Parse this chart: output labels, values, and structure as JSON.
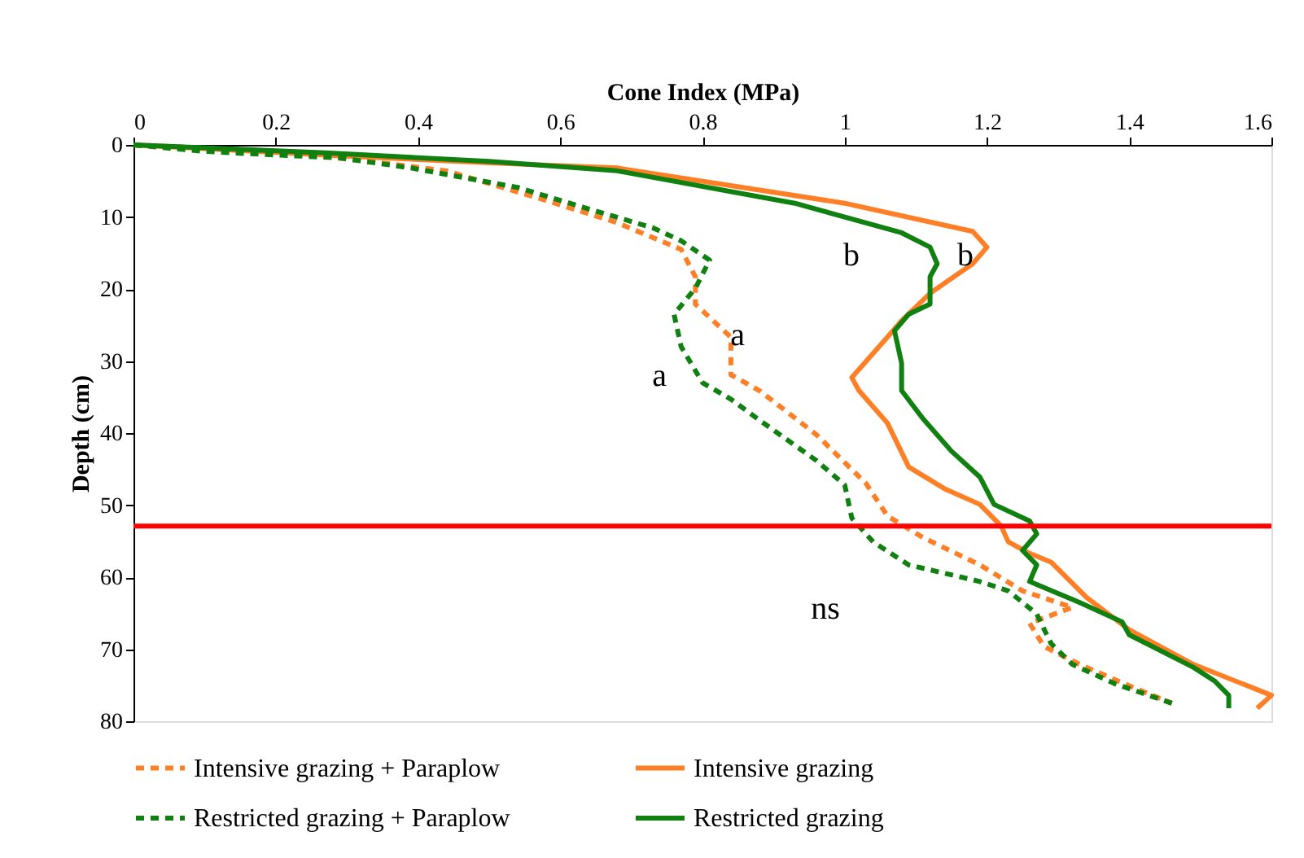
{
  "chart_data": {
    "type": "line",
    "xlabel": "Cone Index (MPa)",
    "ylabel": "Depth (cm)",
    "xlim": [
      0,
      1.6
    ],
    "xticks": [
      0,
      0.2,
      0.4,
      0.6,
      0.8,
      1,
      1.2,
      1.4,
      1.6
    ],
    "ylim": [
      80,
      0
    ],
    "yticks": [
      0,
      10,
      20,
      30,
      40,
      50,
      60,
      70,
      80
    ],
    "grid": false,
    "legend": "bottom",
    "marker": "none",
    "series": [
      {
        "name": "Intensive grazing + Paraplow",
        "color": "#ff7f27",
        "line_style": "dashed",
        "x": [
          0,
          0.2,
          0.35,
          0.44,
          0.58,
          0.68,
          0.77,
          0.79,
          0.79,
          0.84,
          0.84,
          0.88,
          0.96,
          1.03,
          1.06,
          1.11,
          1.19,
          1.25,
          1.32,
          1.26,
          1.28,
          1.33,
          1.41,
          1.46
        ],
        "values": [
          0,
          0.9,
          2.5,
          3.6,
          7.7,
          10.8,
          14.5,
          18.3,
          22.1,
          26.7,
          31.9,
          34.1,
          40.2,
          47.0,
          51.5,
          54.5,
          58.3,
          61.9,
          64.2,
          66.4,
          69.6,
          72.1,
          75.5,
          77.5
        ]
      },
      {
        "name": "Intensive grazing",
        "color": "#ff7f27",
        "line_style": "solid",
        "x": [
          0,
          0.27,
          0.5,
          0.68,
          1.0,
          1.18,
          1.2,
          1.18,
          1.12,
          1.08,
          1.06,
          1.01,
          1.02,
          1.06,
          1.09,
          1.14,
          1.19,
          1.22,
          1.23,
          1.26,
          1.29,
          1.34,
          1.4,
          1.49,
          1.6,
          1.58
        ],
        "values": [
          0,
          1.4,
          2.5,
          3.2,
          8.1,
          12.0,
          14.2,
          16.5,
          20.6,
          24.4,
          26.7,
          32.3,
          34.1,
          38.6,
          44.7,
          47.7,
          49.9,
          52.9,
          55.1,
          56.7,
          57.9,
          62.8,
          67.3,
          72.1,
          76.4,
          78.2
        ]
      },
      {
        "name": "Restricted grazing + Paraplow",
        "color": "#108010",
        "line_style": "dashed",
        "x": [
          0,
          0.1,
          0.2,
          0.29,
          0.39,
          0.54,
          0.63,
          0.73,
          0.77,
          0.81,
          0.79,
          0.76,
          0.77,
          0.8,
          0.84,
          0.88,
          0.96,
          1.0,
          1.01,
          1.04,
          1.09,
          1.19,
          1.23,
          1.27,
          1.29,
          1.32,
          1.38,
          1.46
        ],
        "values": [
          0,
          0.9,
          1.4,
          1.8,
          3.2,
          5.9,
          8.6,
          11.5,
          13.3,
          16.0,
          19.9,
          23.5,
          28.0,
          33.0,
          35.3,
          38.2,
          43.8,
          47.2,
          51.8,
          55.1,
          58.3,
          60.6,
          61.9,
          65.1,
          69.2,
          72.1,
          74.8,
          77.5
        ]
      },
      {
        "name": "Restricted grazing",
        "color": "#108010",
        "line_style": "solid",
        "x": [
          0,
          0.27,
          0.5,
          0.68,
          0.93,
          1.08,
          1.12,
          1.13,
          1.12,
          1.12,
          1.09,
          1.07,
          1.08,
          1.08,
          1.11,
          1.15,
          1.19,
          1.21,
          1.26,
          1.27,
          1.25,
          1.27,
          1.26,
          1.33,
          1.39,
          1.4,
          1.49,
          1.52,
          1.54,
          1.54
        ],
        "values": [
          0,
          1.1,
          2.3,
          3.6,
          8.1,
          12.2,
          14.2,
          16.5,
          18.3,
          22.1,
          23.5,
          25.8,
          30.3,
          34.1,
          38.0,
          42.5,
          46.1,
          49.9,
          52.2,
          54.0,
          56.3,
          58.3,
          60.6,
          63.5,
          66.2,
          68.0,
          72.5,
          74.4,
          76.4,
          78.2
        ]
      }
    ],
    "ref_lines": [
      {
        "axis": "y",
        "value": 52.9,
        "color": "#ff0000",
        "line_style": "solid"
      }
    ],
    "annotations": [
      "b",
      "b",
      "a",
      "a",
      "ns"
    ]
  }
}
